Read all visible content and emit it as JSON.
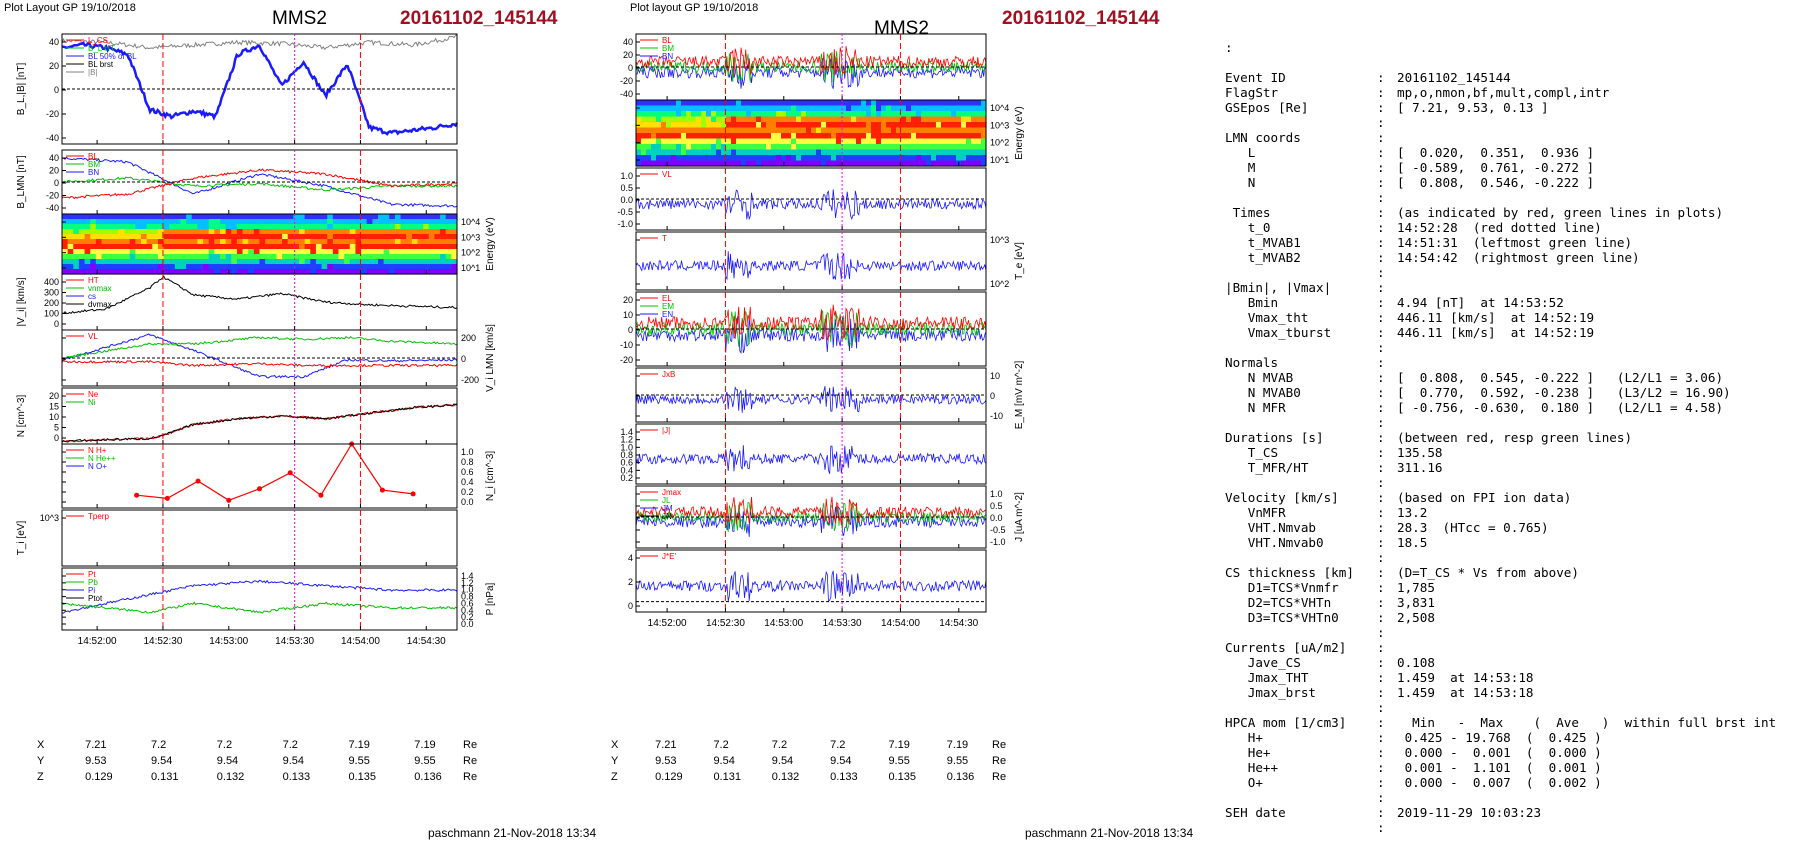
{
  "page": {
    "left_header": "Plot Layout GP 19/10/2018",
    "middle_header": "Plot layout GP 19/10/2018",
    "spacecraft": "MMS2",
    "event": "20161102_145144",
    "footer": "paschmann 21-Nov-2018 13:34",
    "info_leading_colon": ":"
  },
  "colors": {
    "event_red": "#a01020",
    "black": "#000000",
    "blue": "#1a1aff",
    "green": "#00c000",
    "red": "#ff0000",
    "gray": "#808080",
    "magenta": "#ff00ff",
    "purple": "#7f00ff"
  },
  "time_axis": {
    "ticks": [
      "14:52:00",
      "14:52:30",
      "14:53:00",
      "14:53:30",
      "14:54:00",
      "14:54:30"
    ],
    "range_sec": [
      0,
      180
    ],
    "tick_sec": [
      16,
      46,
      76,
      106,
      136,
      166
    ]
  },
  "markers": {
    "red_dash_sec": [
      46,
      136
    ],
    "red_dot_sec": [
      50
    ],
    "magenta_dot_sec": [
      106
    ]
  },
  "coords": {
    "rows": [
      {
        "label": "X",
        "values": [
          "7.21",
          "7.2",
          "7.2",
          "7.2",
          "7.19",
          "7.19"
        ],
        "unit": "Re"
      },
      {
        "label": "Y",
        "values": [
          "9.53",
          "9.54",
          "9.54",
          "9.54",
          "9.55",
          "9.55"
        ],
        "unit": "Re"
      },
      {
        "label": "Z",
        "values": [
          "0.129",
          "0.131",
          "0.132",
          "0.133",
          "0.135",
          "0.136"
        ],
        "unit": "Re"
      }
    ]
  },
  "chart_data": [
    {
      "type": "line",
      "panel": "B_L |B|",
      "ylabel": "B_L,|B| [nT]",
      "ylim": [
        -40,
        40
      ],
      "yticks": [
        "40",
        "20",
        "0",
        "-20",
        "-40"
      ],
      "legend": [
        "L_CS",
        "B_L HT",
        "BL 50% of BL",
        "BL brst",
        "|B|"
      ],
      "series": [
        {
          "name": "|B|",
          "color": "gray",
          "x": [
            0,
            20,
            40,
            60,
            80,
            100,
            120,
            140,
            160,
            180
          ],
          "values": [
            35,
            34,
            30,
            32,
            34,
            33,
            30,
            34,
            32,
            38
          ]
        },
        {
          "name": "BL",
          "color": "blue",
          "x": [
            0,
            10,
            20,
            30,
            40,
            50,
            60,
            70,
            80,
            90,
            100,
            110,
            120,
            130,
            140,
            150,
            160,
            170,
            180
          ],
          "values": [
            30,
            32,
            30,
            25,
            -15,
            -20,
            -16,
            -20,
            25,
            32,
            2,
            20,
            -5,
            18,
            -28,
            -32,
            -30,
            -28,
            -25
          ]
        }
      ]
    },
    {
      "type": "line",
      "panel": "B_LMN",
      "ylabel": "B_LMN [nT]",
      "ylim": [
        -40,
        40
      ],
      "yticks": [
        "40",
        "20",
        "0",
        "-20",
        "-40"
      ],
      "legend": [
        "BL",
        "BM",
        "BN"
      ],
      "series": [
        {
          "name": "BL",
          "color": "blue",
          "x": [
            0,
            30,
            60,
            90,
            120,
            150,
            180
          ],
          "values": [
            30,
            25,
            -15,
            10,
            -5,
            -28,
            -30
          ]
        },
        {
          "name": "BM",
          "color": "green",
          "x": [
            0,
            30,
            60,
            90,
            120,
            150,
            180
          ],
          "values": [
            0,
            5,
            -5,
            -2,
            -10,
            -5,
            -5
          ]
        },
        {
          "name": "BN",
          "color": "red",
          "x": [
            0,
            30,
            60,
            90,
            120,
            150,
            180
          ],
          "values": [
            -20,
            -15,
            5,
            15,
            10,
            -5,
            -2
          ]
        }
      ]
    },
    {
      "type": "heatmap",
      "panel": "ion energy spectrogram",
      "ylabel": "Energy (eV)",
      "yticks": [
        "10^4",
        "10^3",
        "10^2",
        "10^1"
      ]
    },
    {
      "type": "line",
      "panel": "|Vi|",
      "ylabel": "|V_i| [km/s]",
      "ylim": [
        0,
        400
      ],
      "yticks": [
        "400",
        "300",
        "200",
        "100",
        "0"
      ],
      "legend": [
        "HT",
        "vnmax",
        "cs",
        "dvmax"
      ],
      "series": [
        {
          "name": "|Vi|",
          "color": "black",
          "x": [
            0,
            20,
            40,
            46,
            60,
            80,
            100,
            120,
            140,
            160,
            180
          ],
          "values": [
            120,
            150,
            300,
            380,
            250,
            220,
            260,
            200,
            180,
            170,
            160
          ]
        }
      ]
    },
    {
      "type": "line",
      "panel": "Vi LMN",
      "ylabel": "V_i LMN [km/s]",
      "ylim": [
        -300,
        300
      ],
      "yticks": [
        "200",
        "0",
        "-200"
      ],
      "legend": [
        "VL"
      ],
      "series": [
        {
          "name": "VL",
          "color": "blue",
          "x": [
            0,
            40,
            60,
            90,
            110,
            130,
            150,
            180
          ],
          "values": [
            -20,
            250,
            80,
            -200,
            -200,
            -20,
            -30,
            -20
          ]
        },
        {
          "name": "VM",
          "color": "green",
          "x": [
            0,
            40,
            60,
            90,
            110,
            130,
            150,
            180
          ],
          "values": [
            0,
            150,
            150,
            220,
            200,
            220,
            180,
            150
          ]
        },
        {
          "name": "VN",
          "color": "red",
          "x": [
            0,
            40,
            60,
            90,
            110,
            130,
            150,
            180
          ],
          "values": [
            -40,
            -40,
            -80,
            -60,
            -80,
            -80,
            -80,
            -80
          ]
        }
      ]
    },
    {
      "type": "line",
      "panel": "N",
      "ylabel": "N [cm^-3]",
      "ylim": [
        0,
        20
      ],
      "yticks": [
        "20",
        "15",
        "10",
        "5",
        "0"
      ],
      "legend": [
        "Ne",
        "Ni"
      ],
      "series": [
        {
          "name": "Ne",
          "color": "red",
          "x": [
            0,
            40,
            46,
            60,
            80,
            100,
            120,
            140,
            160,
            180
          ],
          "values": [
            1,
            2,
            3,
            7,
            9,
            10,
            9,
            11,
            13,
            14
          ]
        },
        {
          "name": "Ni",
          "color": "black",
          "x": [
            0,
            40,
            46,
            60,
            80,
            100,
            120,
            140,
            160,
            180
          ],
          "values": [
            1,
            2,
            3,
            7,
            9,
            10,
            9,
            11,
            13,
            14
          ]
        }
      ]
    },
    {
      "type": "scatter",
      "panel": "Ni HPCA",
      "ylabel": "N_i [cm^-3]",
      "ylim": [
        0,
        1.0
      ],
      "yticks": [
        "1.0",
        "0.8",
        "0.6",
        "0.4",
        "0.2",
        "0.0"
      ],
      "legend": [
        "N H+",
        "N He++",
        "N O+"
      ],
      "series": [
        {
          "name": "N He++",
          "color": "red",
          "x": [
            34,
            48,
            62,
            76,
            90,
            104,
            118,
            132,
            146,
            160
          ],
          "values": [
            0.2,
            0.15,
            0.42,
            0.12,
            0.3,
            0.55,
            0.2,
            1.0,
            0.28,
            0.22
          ]
        }
      ]
    },
    {
      "type": "line",
      "panel": "Ti",
      "ylabel": "T_i [eV]",
      "yticks": [
        "10^3"
      ],
      "legend": [
        "Tperp"
      ],
      "series": [
        {
          "name": "T",
          "color": "black",
          "x": [
            0,
            40,
            50,
            70,
            100,
            130,
            180
          ],
          "values": [
            3000,
            2200,
            1400,
            1200,
            1100,
            1000,
            950
          ]
        }
      ]
    },
    {
      "type": "line",
      "panel": "P",
      "ylabel": "P [nPa]",
      "ylim": [
        0,
        1.4
      ],
      "yticks": [
        "1.4",
        "1.2",
        "1.0",
        "0.8",
        "0.6",
        "0.4",
        "0.2",
        "0.0"
      ],
      "legend": [
        "Pt",
        "Pb",
        "Pi",
        "Ptot"
      ],
      "series": [
        {
          "name": "Ptot",
          "color": "blue",
          "x": [
            0,
            40,
            60,
            90,
            120,
            150,
            180
          ],
          "values": [
            0.4,
            0.8,
            1.0,
            1.1,
            1.0,
            0.9,
            0.9
          ]
        },
        {
          "name": "Pb",
          "color": "green",
          "x": [
            0,
            40,
            60,
            90,
            120,
            150,
            180
          ],
          "values": [
            0.6,
            0.4,
            0.6,
            0.4,
            0.6,
            0.5,
            0.5
          ]
        }
      ]
    },
    {
      "type": "line",
      "panel": "mid B_LMN",
      "ylabel": "B_LMN [nT]",
      "ylim": [
        -40,
        40
      ],
      "yticks": [
        "40",
        "20",
        "0",
        "-20",
        "-40"
      ],
      "legend": [
        "BL",
        "BM",
        "BN"
      ]
    },
    {
      "type": "heatmap",
      "panel": "electron energy spectrogram",
      "ylabel": "Energy (eV)",
      "yticks": [
        "10^4",
        "10^3",
        "10^2",
        "10^1"
      ]
    },
    {
      "type": "line",
      "panel": "Ve LMN",
      "ylabel": "V_e LMN [km/s](x10^3)",
      "ylim": [
        -1.0,
        1.0
      ],
      "yticks": [
        "1.0",
        "0.5",
        "0.0",
        "-0.5",
        "-1.0"
      ],
      "legend": [
        "VL"
      ]
    },
    {
      "type": "line",
      "panel": "Te",
      "ylabel": "T_e [eV]",
      "yticks": [
        "10^3",
        "10^2"
      ],
      "legend": [
        "T"
      ]
    },
    {
      "type": "line",
      "panel": "E_LMN",
      "ylabel": "E_LMN [mV m^-1]",
      "ylim": [
        -20,
        20
      ],
      "yticks": [
        "20",
        "10",
        "0",
        "-10",
        "-20"
      ],
      "legend": [
        "EL",
        "EM",
        "EN"
      ]
    },
    {
      "type": "line",
      "panel": "E_M",
      "ylabel": "E_M [mV m^-2]",
      "ylim": [
        -15,
        15
      ],
      "yticks": [
        "10",
        "0",
        "-10"
      ],
      "legend": [
        "JxB"
      ]
    },
    {
      "type": "line",
      "panel": "|J|",
      "ylabel": "|J| [uA m^-2]",
      "ylim": [
        0,
        1.4
      ],
      "yticks": [
        "1.4",
        "1.2",
        "1.0",
        "0.8",
        "0.6",
        "0.4",
        "0.2"
      ],
      "legend": [
        "|J|"
      ]
    },
    {
      "type": "line",
      "panel": "J",
      "ylabel": "J [uA m^-2]",
      "ylim": [
        -1.0,
        1.0
      ],
      "yticks": [
        "1.0",
        "0.5",
        "0.0",
        "-0.5",
        "-1.0"
      ],
      "legend": [
        "Jmax",
        "JL",
        "JM",
        "JN"
      ]
    },
    {
      "type": "line",
      "panel": "J*E'",
      "ylabel": "J*E' [nW m^-3]",
      "ylim": [
        -1,
        5
      ],
      "yticks": [
        "4",
        "2",
        "0"
      ],
      "legend": [
        "J*E'"
      ]
    }
  ],
  "info": [
    {
      "k": "Event ID",
      "v": "20161102_145144"
    },
    {
      "k": "FlagStr",
      "v": "mp,o,nmon,bf,mult,compl,intr"
    },
    {
      "k": "GSEpos [Re]",
      "v": "[ 7.21, 9.53, 0.13 ]"
    },
    {
      "k": "",
      "v": ""
    },
    {
      "k": "LMN coords",
      "v": ""
    },
    {
      "k": "   L",
      "v": "[  0.020,  0.351,  0.936 ]"
    },
    {
      "k": "   M",
      "v": "[ -0.589,  0.761, -0.272 ]"
    },
    {
      "k": "   N",
      "v": "[  0.808,  0.546, -0.222 ]"
    },
    {
      "k": "",
      "v": ""
    },
    {
      "k": " Times",
      "v": "(as indicated by red, green lines in plots)"
    },
    {
      "k": "   t_0",
      "v": "14:52:28  (red dotted line)"
    },
    {
      "k": "   t_MVAB1",
      "v": "14:51:31  (leftmost green line)"
    },
    {
      "k": "   t_MVAB2",
      "v": "14:54:42  (rightmost green line)"
    },
    {
      "k": "",
      "v": ""
    },
    {
      "k": "|Bmin|, |Vmax|",
      "v": ""
    },
    {
      "k": "   Bmin",
      "v": "4.94 [nT]  at 14:53:52"
    },
    {
      "k": "   Vmax_tht",
      "v": "446.11 [km/s]  at 14:52:19"
    },
    {
      "k": "   Vmax_tburst",
      "v": "446.11 [km/s]  at 14:52:19"
    },
    {
      "k": "",
      "v": ""
    },
    {
      "k": "Normals",
      "v": ""
    },
    {
      "k": "   N MVAB",
      "v": "[  0.808,  0.545, -0.222 ]   (L2/L1 = 3.06)"
    },
    {
      "k": "   N MVAB0",
      "v": "[  0.770,  0.592, -0.238 ]   (L3/L2 = 16.90)"
    },
    {
      "k": "   N MFR",
      "v": "[ -0.756, -0.630,  0.180 ]   (L2/L1 = 4.58)"
    },
    {
      "k": "",
      "v": ""
    },
    {
      "k": "Durations [s]",
      "v": "(between red, resp green lines)"
    },
    {
      "k": "   T_CS",
      "v": "135.58"
    },
    {
      "k": "   T_MFR/HT",
      "v": "311.16"
    },
    {
      "k": "",
      "v": ""
    },
    {
      "k": "Velocity [km/s]",
      "v": "(based on FPI ion data)"
    },
    {
      "k": "   VnMFR",
      "v": "13.2"
    },
    {
      "k": "   VHT.Nmvab",
      "v": "28.3  (HTcc = 0.765)"
    },
    {
      "k": "   VHT.Nmvab0",
      "v": "18.5"
    },
    {
      "k": "",
      "v": ""
    },
    {
      "k": "CS thickness [km]",
      "v": "(D=T_CS * Vs from above)"
    },
    {
      "k": "   D1=TCS*Vnmfr",
      "v": "1,785"
    },
    {
      "k": "   D2=TCS*VHTn",
      "v": "3,831"
    },
    {
      "k": "   D3=TCS*VHTn0",
      "v": "2,508"
    },
    {
      "k": "",
      "v": ""
    },
    {
      "k": "Currents [uA/m2]",
      "v": ""
    },
    {
      "k": "   Jave_CS",
      "v": "0.108"
    },
    {
      "k": "   Jmax_THT",
      "v": "1.459  at 14:53:18"
    },
    {
      "k": "   Jmax_brst",
      "v": "1.459  at 14:53:18"
    },
    {
      "k": "",
      "v": ""
    },
    {
      "k": "HPCA mom [1/cm3]",
      "v": "  Min   -  Max    (  Ave   )  within full brst int"
    },
    {
      "k": "   H+",
      "v": " 0.425 - 19.768  (  0.425 )"
    },
    {
      "k": "   He+",
      "v": " 0.000 -  0.001  (  0.000 )"
    },
    {
      "k": "   He++",
      "v": " 0.001 -  1.101  (  0.001 )"
    },
    {
      "k": "   O+",
      "v": " 0.000 -  0.007  (  0.002 )"
    },
    {
      "k": "",
      "v": ""
    },
    {
      "k": "SEH date",
      "v": "2019-11-29 10:03:23"
    },
    {
      "k": "",
      "v": ""
    }
  ]
}
